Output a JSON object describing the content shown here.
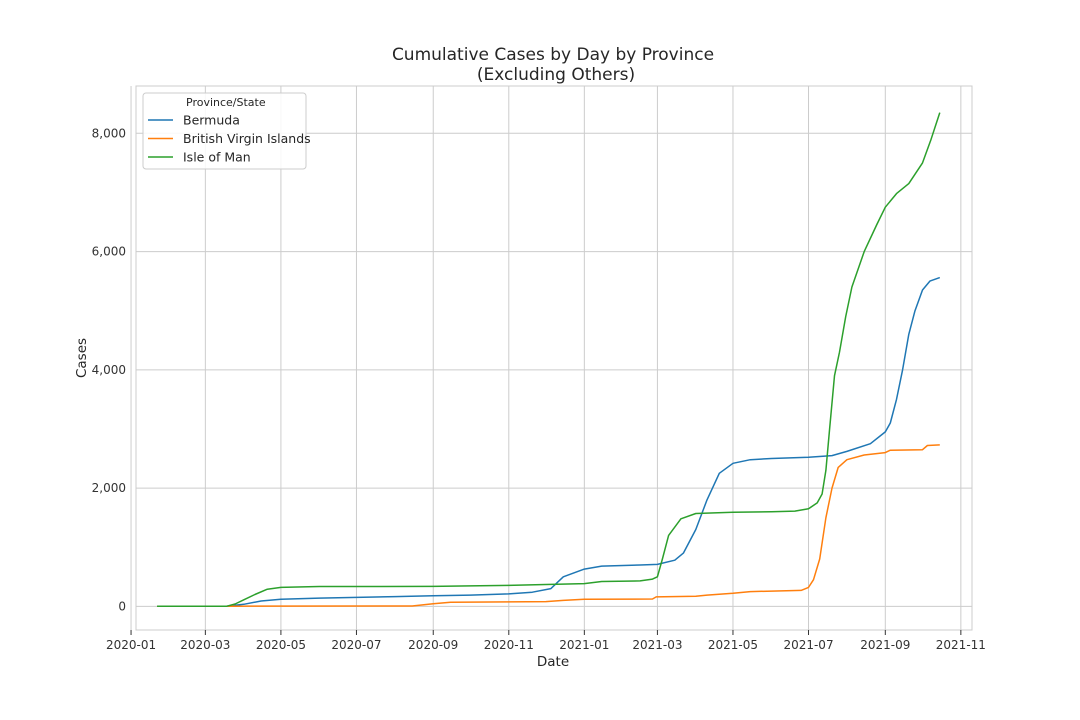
{
  "chart_data": {
    "type": "line",
    "title": "Cumulative Cases by Day by Province",
    "subtitle": "(Excluding Others)",
    "xlabel": "Date",
    "ylabel": "Cases",
    "xlim": [
      "2020-01-05",
      "2021-11-10"
    ],
    "ylim": [
      -400,
      8800
    ],
    "x_ticks": [
      "2020-01-01",
      "2020-03-01",
      "2020-05-01",
      "2020-07-01",
      "2020-09-01",
      "2020-11-01",
      "2021-01-01",
      "2021-03-01",
      "2021-05-01",
      "2021-07-01",
      "2021-09-01",
      "2021-11-01"
    ],
    "x_tick_labels": [
      "2020-01",
      "2020-03",
      "2020-05",
      "2020-07",
      "2020-09",
      "2020-11",
      "2021-01",
      "2021-03",
      "2021-05",
      "2021-07",
      "2021-09",
      "2021-11"
    ],
    "y_ticks": [
      0,
      2000,
      4000,
      6000,
      8000
    ],
    "y_tick_labels": [
      "0",
      "2,000",
      "4,000",
      "6,000",
      "8,000"
    ],
    "grid": true,
    "legend": {
      "title": "Province/State",
      "placement": "top-left"
    },
    "series": [
      {
        "name": "Bermuda",
        "color": "#1f77b4",
        "points": [
          [
            "2020-01-22",
            0
          ],
          [
            "2020-03-18",
            0
          ],
          [
            "2020-04-01",
            35
          ],
          [
            "2020-04-15",
            90
          ],
          [
            "2020-05-01",
            120
          ],
          [
            "2020-06-01",
            140
          ],
          [
            "2020-08-01",
            165
          ],
          [
            "2020-09-01",
            180
          ],
          [
            "2020-10-01",
            190
          ],
          [
            "2020-11-01",
            210
          ],
          [
            "2020-11-20",
            240
          ],
          [
            "2020-12-05",
            300
          ],
          [
            "2020-12-15",
            500
          ],
          [
            "2021-01-01",
            630
          ],
          [
            "2021-01-15",
            680
          ],
          [
            "2021-02-15",
            700
          ],
          [
            "2021-03-01",
            710
          ],
          [
            "2021-03-15",
            780
          ],
          [
            "2021-03-22",
            900
          ],
          [
            "2021-04-01",
            1300
          ],
          [
            "2021-04-10",
            1800
          ],
          [
            "2021-04-20",
            2250
          ],
          [
            "2021-05-01",
            2420
          ],
          [
            "2021-05-15",
            2480
          ],
          [
            "2021-06-01",
            2500
          ],
          [
            "2021-07-01",
            2520
          ],
          [
            "2021-07-20",
            2550
          ],
          [
            "2021-08-01",
            2620
          ],
          [
            "2021-08-20",
            2750
          ],
          [
            "2021-09-01",
            2950
          ],
          [
            "2021-09-05",
            3100
          ],
          [
            "2021-09-10",
            3500
          ],
          [
            "2021-09-15",
            4000
          ],
          [
            "2021-09-20",
            4600
          ],
          [
            "2021-09-25",
            5000
          ],
          [
            "2021-10-01",
            5350
          ],
          [
            "2021-10-07",
            5500
          ],
          [
            "2021-10-15",
            5560
          ]
        ]
      },
      {
        "name": "British Virgin Islands",
        "color": "#ff7f0e",
        "points": [
          [
            "2020-01-22",
            0
          ],
          [
            "2020-03-25",
            0
          ],
          [
            "2020-04-05",
            4
          ],
          [
            "2020-08-15",
            6
          ],
          [
            "2020-09-01",
            45
          ],
          [
            "2020-09-15",
            70
          ],
          [
            "2020-10-01",
            72
          ],
          [
            "2020-12-01",
            80
          ],
          [
            "2020-12-15",
            100
          ],
          [
            "2021-01-01",
            120
          ],
          [
            "2021-02-25",
            125
          ],
          [
            "2021-02-28",
            160
          ],
          [
            "2021-04-01",
            170
          ],
          [
            "2021-04-10",
            190
          ],
          [
            "2021-05-01",
            220
          ],
          [
            "2021-05-15",
            250
          ],
          [
            "2021-06-25",
            270
          ],
          [
            "2021-07-01",
            320
          ],
          [
            "2021-07-05",
            450
          ],
          [
            "2021-07-10",
            800
          ],
          [
            "2021-07-15",
            1500
          ],
          [
            "2021-07-20",
            2000
          ],
          [
            "2021-07-25",
            2350
          ],
          [
            "2021-08-01",
            2480
          ],
          [
            "2021-08-15",
            2560
          ],
          [
            "2021-09-01",
            2600
          ],
          [
            "2021-09-05",
            2640
          ],
          [
            "2021-10-01",
            2650
          ],
          [
            "2021-10-05",
            2720
          ],
          [
            "2021-10-15",
            2730
          ]
        ]
      },
      {
        "name": "Isle of Man",
        "color": "#2ca02c",
        "points": [
          [
            "2020-01-22",
            0
          ],
          [
            "2020-03-18",
            0
          ],
          [
            "2020-03-25",
            40
          ],
          [
            "2020-04-01",
            110
          ],
          [
            "2020-04-10",
            200
          ],
          [
            "2020-04-20",
            290
          ],
          [
            "2020-05-01",
            320
          ],
          [
            "2020-06-01",
            336
          ],
          [
            "2020-09-01",
            338
          ],
          [
            "2020-10-01",
            345
          ],
          [
            "2020-11-01",
            355
          ],
          [
            "2020-12-01",
            370
          ],
          [
            "2021-01-01",
            385
          ],
          [
            "2021-01-15",
            420
          ],
          [
            "2021-02-15",
            430
          ],
          [
            "2021-02-25",
            460
          ],
          [
            "2021-03-01",
            500
          ],
          [
            "2021-03-05",
            800
          ],
          [
            "2021-03-10",
            1200
          ],
          [
            "2021-03-20",
            1480
          ],
          [
            "2021-04-01",
            1570
          ],
          [
            "2021-05-01",
            1590
          ],
          [
            "2021-06-01",
            1600
          ],
          [
            "2021-06-20",
            1610
          ],
          [
            "2021-07-01",
            1650
          ],
          [
            "2021-07-08",
            1750
          ],
          [
            "2021-07-12",
            1900
          ],
          [
            "2021-07-15",
            2300
          ],
          [
            "2021-07-18",
            3000
          ],
          [
            "2021-07-22",
            3900
          ],
          [
            "2021-07-26",
            4300
          ],
          [
            "2021-07-31",
            4900
          ],
          [
            "2021-08-05",
            5400
          ],
          [
            "2021-08-15",
            6000
          ],
          [
            "2021-08-25",
            6450
          ],
          [
            "2021-09-01",
            6750
          ],
          [
            "2021-09-10",
            6980
          ],
          [
            "2021-09-20",
            7150
          ],
          [
            "2021-10-01",
            7500
          ],
          [
            "2021-10-08",
            7900
          ],
          [
            "2021-10-15",
            8350
          ]
        ]
      }
    ]
  }
}
